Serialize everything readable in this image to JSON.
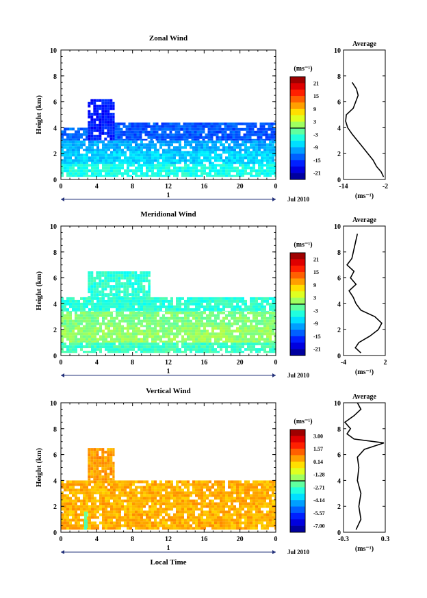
{
  "panels": [
    {
      "id": "zonal",
      "title": "Zonal Wind",
      "avg_title": "Average",
      "cbar_unit": "(ms⁻¹)",
      "cbar_ticks": [
        "21",
        "15",
        "9",
        "3",
        "-3",
        "-9",
        "-15",
        "-21"
      ],
      "avg_ticks": [
        "-14",
        "-2"
      ],
      "avg_unit": "(ms⁻¹)",
      "date_label": "Jul 2010",
      "day_label": "1"
    },
    {
      "id": "meridional",
      "title": "Meridional Wind",
      "avg_title": "Average",
      "cbar_unit": "(ms⁻¹)",
      "cbar_ticks": [
        "21",
        "15",
        "9",
        "3",
        "-3",
        "-9",
        "-15",
        "-21"
      ],
      "avg_ticks": [
        "-4",
        "2"
      ],
      "avg_unit": "(ms⁻¹)",
      "date_label": "Jul 2010",
      "day_label": "1"
    },
    {
      "id": "vertical",
      "title": "Vertical Wind",
      "avg_title": "Average",
      "cbar_unit": "(ms⁻¹)",
      "cbar_ticks": [
        "3.00",
        "1.57",
        "0.14",
        "-1.28",
        "-2.71",
        "-4.14",
        "-5.57",
        "-7.00"
      ],
      "avg_ticks": [
        "-0.3",
        "0.3"
      ],
      "avg_unit": "(ms⁻¹)",
      "date_label": "Jul 2010",
      "day_label": "1"
    }
  ],
  "y_ticks": [
    "0",
    "2",
    "4",
    "6",
    "8",
    "10"
  ],
  "x_ticks": [
    "0",
    "4",
    "8",
    "12",
    "16",
    "20",
    "0"
  ],
  "ylabel": "Height (km)",
  "xlabel": "Local Time",
  "chart_data": [
    {
      "type": "heatmap",
      "title": "Zonal Wind",
      "xlabel": "",
      "ylabel": "Height (km)",
      "xlim": [
        0,
        24
      ],
      "ylim": [
        0,
        10
      ],
      "colorbar": {
        "unit": "ms-1",
        "ticks": [
          21,
          15,
          9,
          3,
          -3,
          -9,
          -15,
          -21
        ],
        "range": [
          -24,
          24
        ]
      },
      "regions": [
        {
          "x": [
            0,
            24
          ],
          "y": [
            0.2,
            1.2
          ],
          "value": -5
        },
        {
          "x": [
            0,
            24
          ],
          "y": [
            1.2,
            2.2
          ],
          "value": -8
        },
        {
          "x": [
            0,
            24
          ],
          "y": [
            2.2,
            3.0
          ],
          "value": -10
        },
        {
          "x": [
            0,
            3
          ],
          "y": [
            3.0,
            4.0
          ],
          "value": -13
        },
        {
          "x": [
            3,
            6
          ],
          "y": [
            3.0,
            6.2
          ],
          "value": -17
        },
        {
          "x": [
            6,
            24
          ],
          "y": [
            3.0,
            4.4
          ],
          "value": -14
        }
      ],
      "average_profile": {
        "xlim": [
          -14,
          -2
        ],
        "height": [
          0.2,
          0.6,
          1.0,
          1.5,
          2.0,
          2.5,
          3.0,
          3.5,
          4.0,
          4.5,
          5.0,
          5.5,
          6.0,
          6.5,
          7.0,
          7.5
        ],
        "value": [
          -2.5,
          -3.2,
          -4.5,
          -5.5,
          -7,
          -8.5,
          -10,
          -11.5,
          -12.8,
          -13.4,
          -13.2,
          -11.2,
          -10.5,
          -9.8,
          -10.3,
          -11.5
        ]
      }
    },
    {
      "type": "heatmap",
      "title": "Meridional Wind",
      "xlabel": "",
      "ylabel": "Height (km)",
      "xlim": [
        0,
        24
      ],
      "ylim": [
        0,
        10
      ],
      "colorbar": {
        "unit": "ms-1",
        "ticks": [
          21,
          15,
          9,
          3,
          -3,
          -9,
          -15,
          -21
        ],
        "range": [
          -24,
          24
        ]
      },
      "regions": [
        {
          "x": [
            0,
            24
          ],
          "y": [
            0.2,
            1.0
          ],
          "value": -3
        },
        {
          "x": [
            0,
            24
          ],
          "y": [
            1.0,
            2.2
          ],
          "value": 1
        },
        {
          "x": [
            0,
            24
          ],
          "y": [
            2.2,
            3.4
          ],
          "value": 0
        },
        {
          "x": [
            0,
            24
          ],
          "y": [
            3.4,
            4.5
          ],
          "value": -4
        },
        {
          "x": [
            3,
            10
          ],
          "y": [
            4.5,
            6.5
          ],
          "value": -4
        }
      ],
      "average_profile": {
        "xlim": [
          -4,
          2
        ],
        "height": [
          0.2,
          0.6,
          1.0,
          1.5,
          2.0,
          2.5,
          3.0,
          3.5,
          4.0,
          4.5,
          5.0,
          5.5,
          6.0,
          6.5,
          7.0,
          7.5,
          9.4
        ],
        "value": [
          -1.5,
          -2.3,
          -1.8,
          -0.2,
          1.0,
          1.5,
          0.5,
          -1.5,
          -2.2,
          -2.6,
          -3.2,
          -2.2,
          -3.0,
          -2.5,
          -3.5,
          -2.8,
          -2.0
        ]
      }
    },
    {
      "type": "heatmap",
      "title": "Vertical Wind",
      "xlabel": "Local Time",
      "ylabel": "Height (km)",
      "xlim": [
        0,
        24
      ],
      "ylim": [
        0,
        10
      ],
      "colorbar": {
        "unit": "ms-1",
        "ticks": [
          3.0,
          1.57,
          0.14,
          -1.28,
          -2.71,
          -4.14,
          -5.57,
          -7.0
        ],
        "range": [
          -7.7,
          3.7
        ]
      },
      "regions": [
        {
          "x": [
            0,
            24
          ],
          "y": [
            0.2,
            4.0
          ],
          "value": 0.3
        },
        {
          "x": [
            3,
            6
          ],
          "y": [
            4.0,
            6.5
          ],
          "value": 0.5
        },
        {
          "x": [
            2.6,
            3.0
          ],
          "y": [
            0.2,
            1.6
          ],
          "value": -2.5
        }
      ],
      "average_profile": {
        "xlim": [
          -0.3,
          0.3
        ],
        "height": [
          0.2,
          1.0,
          2.0,
          3.0,
          4.0,
          5.0,
          5.8,
          6.4,
          6.9,
          7.2,
          7.6,
          8.0,
          8.5,
          9.0,
          9.5,
          10.0
        ],
        "value": [
          -0.12,
          -0.05,
          -0.08,
          -0.05,
          -0.1,
          -0.08,
          -0.1,
          0.0,
          0.28,
          -0.15,
          -0.25,
          -0.2,
          -0.28,
          -0.15,
          -0.05,
          -0.1
        ]
      }
    }
  ]
}
